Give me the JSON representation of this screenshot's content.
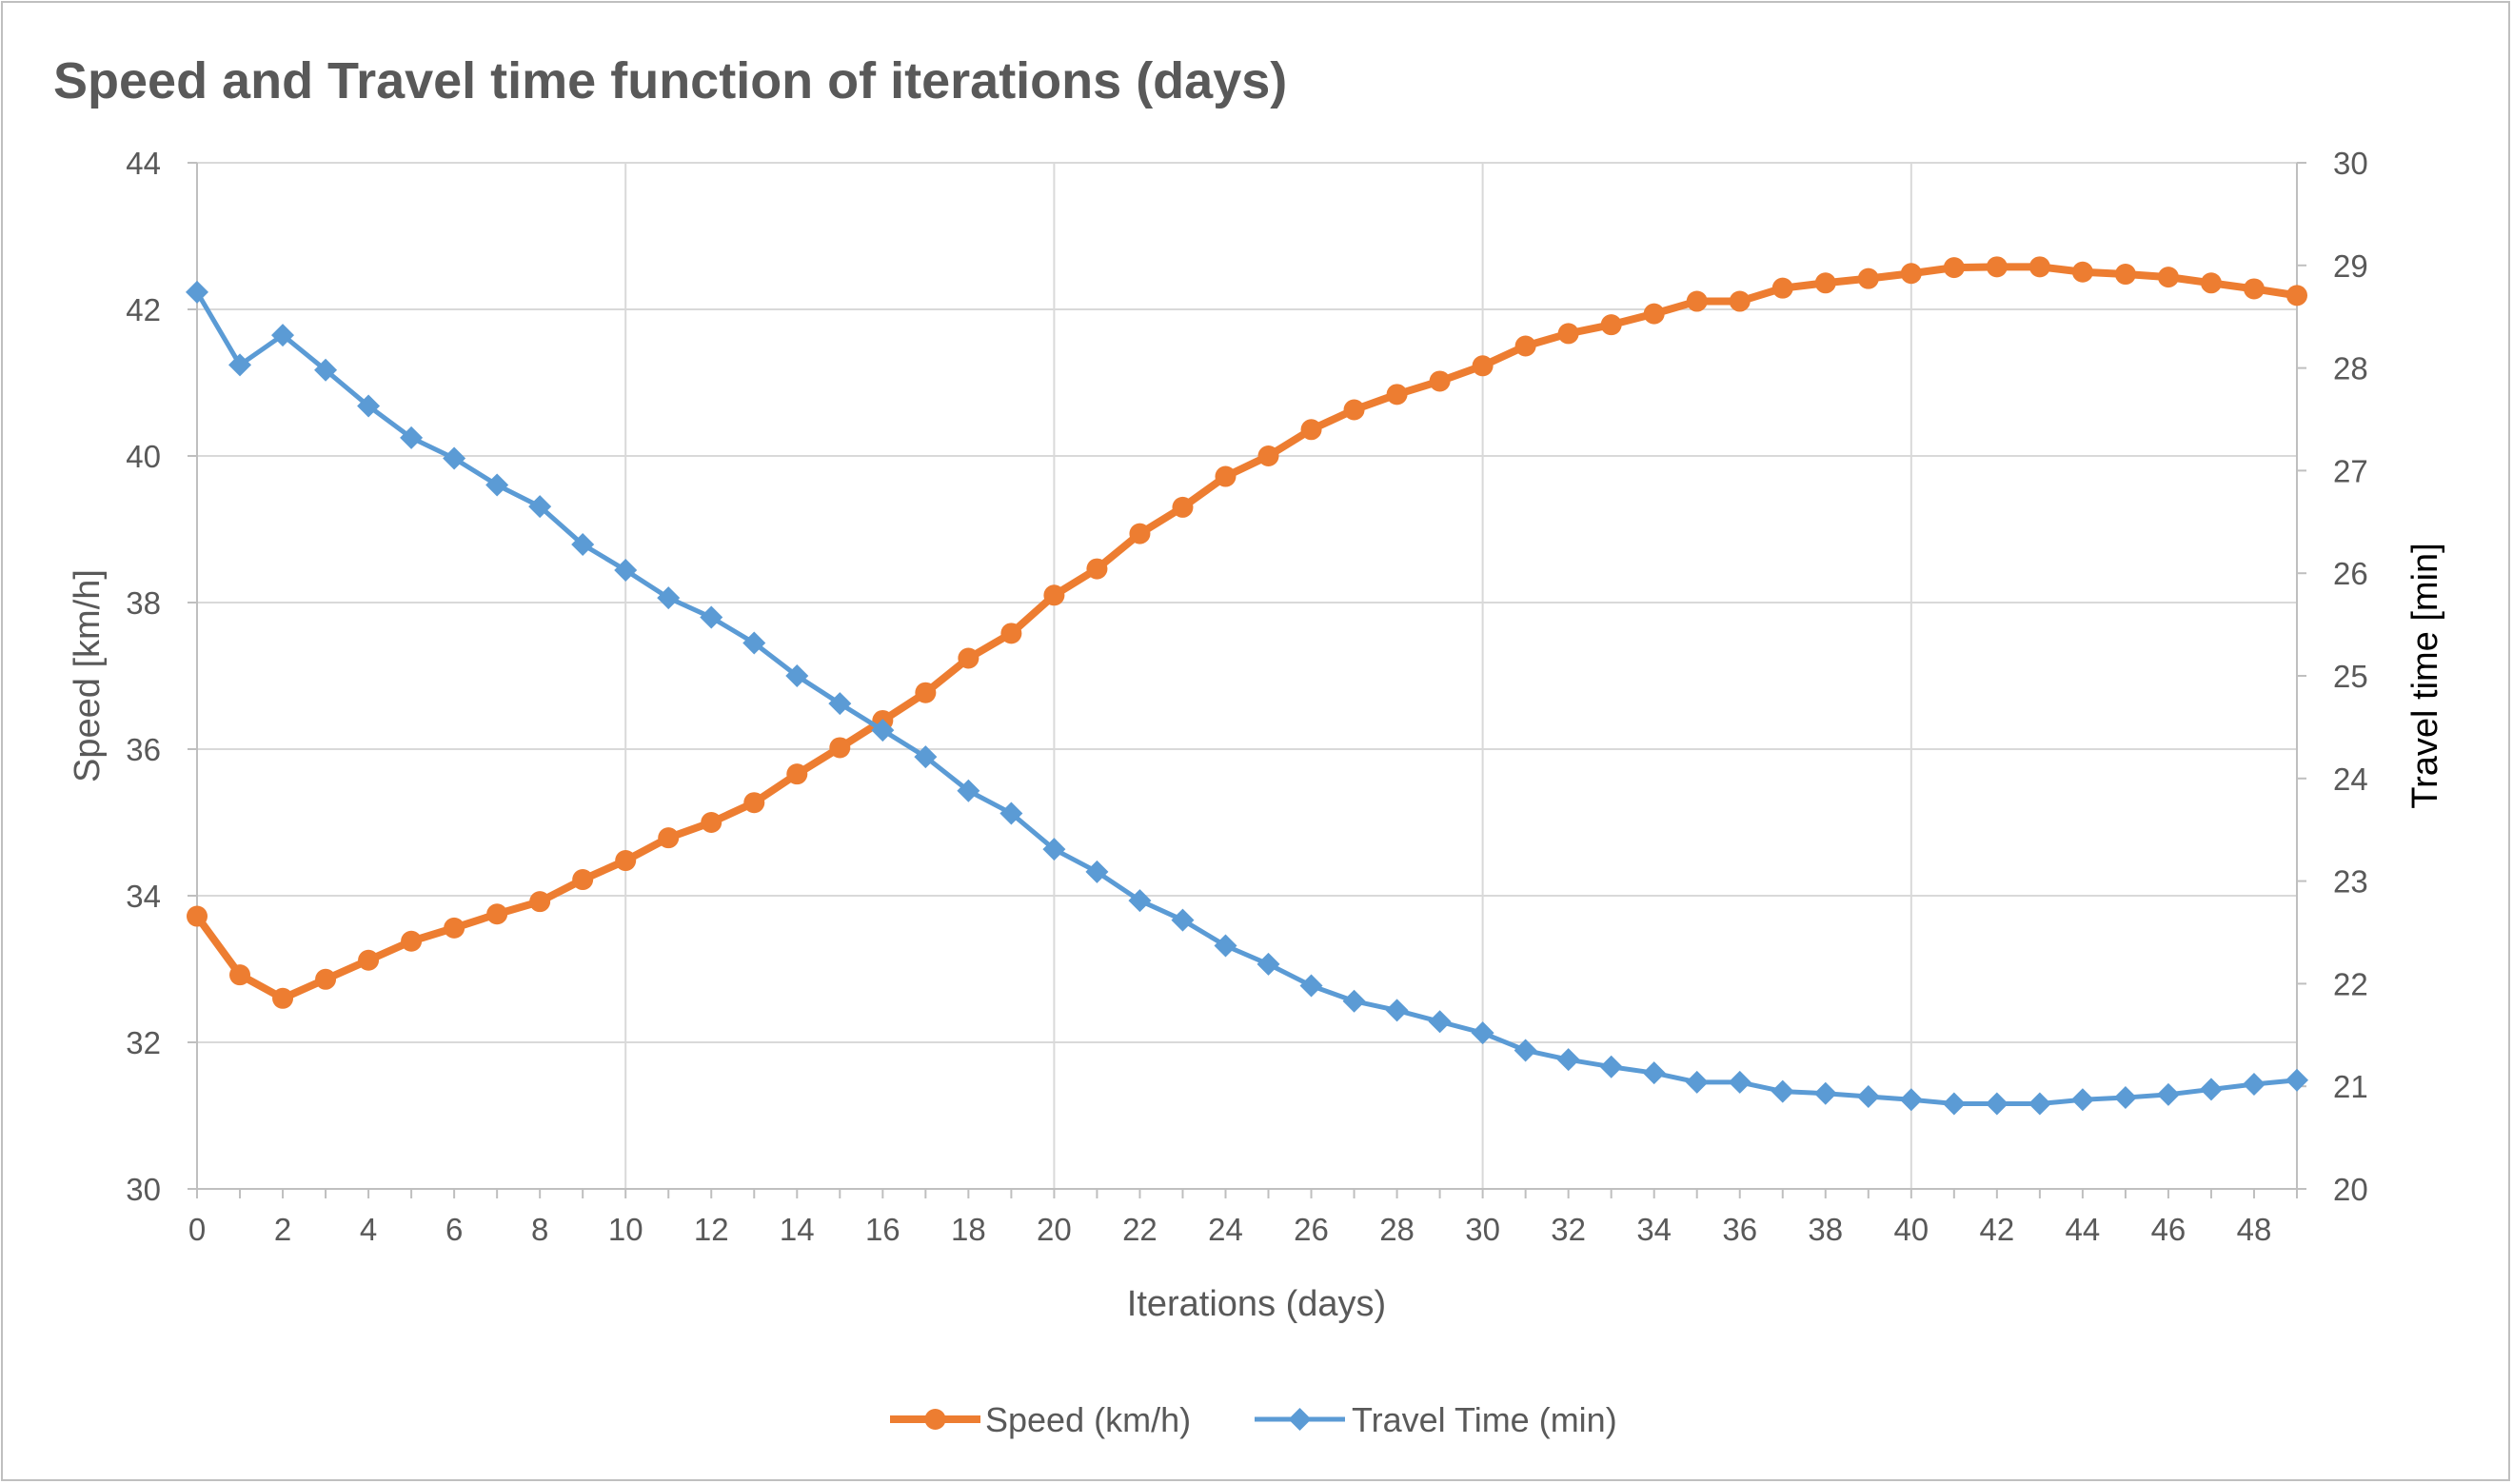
{
  "chart_data": {
    "type": "line",
    "title": "Speed and Travel time function of iterations (days)",
    "xlabel": "Iterations (days)",
    "ylabel_left": "Speed [km/h]",
    "ylabel_right": "Travel time [min]",
    "xlim": [
      0,
      49
    ],
    "x_ticks": [
      0,
      2,
      4,
      6,
      8,
      10,
      12,
      14,
      16,
      18,
      20,
      22,
      24,
      26,
      28,
      30,
      32,
      34,
      36,
      38,
      40,
      42,
      44,
      46,
      48
    ],
    "ylim_left": [
      30,
      44
    ],
    "y_ticks_left": [
      30,
      32,
      34,
      36,
      38,
      40,
      42,
      44
    ],
    "ylim_right": [
      20,
      30
    ],
    "y_ticks_right": [
      20,
      21,
      22,
      23,
      24,
      25,
      26,
      27,
      28,
      29,
      30
    ],
    "grid": true,
    "legend_position": "bottom",
    "x": [
      0,
      1,
      2,
      3,
      4,
      5,
      6,
      7,
      8,
      9,
      10,
      11,
      12,
      13,
      14,
      15,
      16,
      17,
      18,
      19,
      20,
      21,
      22,
      23,
      24,
      25,
      26,
      27,
      28,
      29,
      30,
      31,
      32,
      33,
      34,
      35,
      36,
      37,
      38,
      39,
      40,
      41,
      42,
      43,
      44,
      45,
      46,
      47,
      48,
      49
    ],
    "series": [
      {
        "name": "Speed (km/h)",
        "axis": "left",
        "color": "#ED7D31",
        "marker": "circle",
        "values": [
          33.72,
          32.92,
          32.6,
          32.86,
          33.12,
          33.38,
          33.56,
          33.75,
          33.92,
          34.22,
          34.48,
          34.79,
          35.0,
          35.27,
          35.66,
          36.02,
          36.39,
          36.77,
          37.24,
          37.58,
          38.1,
          38.46,
          38.94,
          39.3,
          39.72,
          40.0,
          40.36,
          40.63,
          40.84,
          41.02,
          41.23,
          41.5,
          41.67,
          41.79,
          41.94,
          42.11,
          42.11,
          42.29,
          42.36,
          42.42,
          42.49,
          42.57,
          42.58,
          42.58,
          42.51,
          42.48,
          42.44,
          42.36,
          42.28,
          42.19
        ]
      },
      {
        "name": "Travel Time (min)",
        "axis": "right",
        "color": "#5B9BD5",
        "marker": "diamond",
        "values": [
          28.74,
          28.03,
          28.32,
          27.98,
          27.63,
          27.32,
          27.12,
          26.86,
          26.65,
          26.28,
          26.03,
          25.76,
          25.57,
          25.32,
          25.0,
          24.73,
          24.47,
          24.21,
          23.88,
          23.66,
          23.31,
          23.09,
          22.81,
          22.62,
          22.37,
          22.19,
          21.98,
          21.83,
          21.74,
          21.63,
          21.52,
          21.35,
          21.26,
          21.19,
          21.13,
          21.04,
          21.04,
          20.95,
          20.93,
          20.9,
          20.87,
          20.83,
          20.83,
          20.83,
          20.87,
          20.89,
          20.92,
          20.97,
          21.02,
          21.06
        ]
      }
    ]
  }
}
